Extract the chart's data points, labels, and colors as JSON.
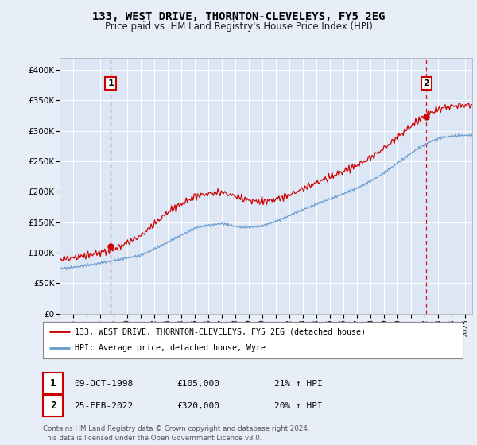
{
  "title": "133, WEST DRIVE, THORNTON-CLEVELEYS, FY5 2EG",
  "subtitle": "Price paid vs. HM Land Registry's House Price Index (HPI)",
  "bg_color": "#e8eef8",
  "plot_bg_color": "#dce6f5",
  "legend_label_red": "133, WEST DRIVE, THORNTON-CLEVELEYS, FY5 2EG (detached house)",
  "legend_label_blue": "HPI: Average price, detached house, Wyre",
  "sale1_date": "09-OCT-1998",
  "sale1_price": 105000,
  "sale1_hpi_pct": "21%",
  "sale2_date": "25-FEB-2022",
  "sale2_price": 320000,
  "sale2_hpi_pct": "20%",
  "footer": "Contains HM Land Registry data © Crown copyright and database right 2024.\nThis data is licensed under the Open Government Licence v3.0.",
  "xmin": 1995.0,
  "xmax": 2025.5,
  "ymin": 0,
  "ymax": 420000,
  "yticks": [
    0,
    50000,
    100000,
    150000,
    200000,
    250000,
    300000,
    350000,
    400000
  ],
  "ytick_labels": [
    "£0",
    "£50K",
    "£100K",
    "£150K",
    "£200K",
    "£250K",
    "£300K",
    "£350K",
    "£400K"
  ],
  "sale1_x": 1998.77,
  "sale2_x": 2022.12,
  "red_color": "#cc0000",
  "blue_color": "#6699cc",
  "vline_color": "#cc0000",
  "sale2_marker_y": 320000,
  "sale1_marker_y": 105000
}
